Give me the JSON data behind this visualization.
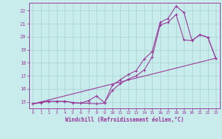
{
  "xlabel": "Windchill (Refroidissement éolien,°C)",
  "bg_color": "#c8ecec",
  "grid_color": "#aad4d4",
  "line_color": "#993399",
  "xlim": [
    -0.5,
    23.5
  ],
  "ylim": [
    14.5,
    22.6
  ],
  "xticks": [
    0,
    1,
    2,
    3,
    4,
    5,
    6,
    7,
    8,
    9,
    10,
    11,
    12,
    13,
    14,
    15,
    16,
    17,
    18,
    19,
    20,
    21,
    22,
    23
  ],
  "yticks": [
    15,
    16,
    17,
    18,
    19,
    20,
    21,
    22
  ],
  "series1_x": [
    0,
    1,
    2,
    3,
    4,
    5,
    6,
    7,
    8,
    9,
    10,
    11,
    12,
    13,
    14,
    15,
    16,
    17,
    18,
    19,
    20,
    21,
    22,
    23
  ],
  "series1_y": [
    14.85,
    14.95,
    15.05,
    15.05,
    15.05,
    14.95,
    14.9,
    14.9,
    14.85,
    14.9,
    16.3,
    16.7,
    17.1,
    17.4,
    18.3,
    18.85,
    21.1,
    21.4,
    22.35,
    21.85,
    19.7,
    20.15,
    19.95,
    18.35
  ],
  "series2_x": [
    0,
    1,
    2,
    3,
    4,
    5,
    6,
    7,
    8,
    9,
    10,
    11,
    12,
    13,
    14,
    15,
    16,
    17,
    18,
    19,
    20,
    21,
    22,
    23
  ],
  "series2_y": [
    14.85,
    14.95,
    15.05,
    15.05,
    15.05,
    14.95,
    14.9,
    15.1,
    15.45,
    14.95,
    15.9,
    16.4,
    16.75,
    17.0,
    17.45,
    18.45,
    20.9,
    21.1,
    21.7,
    19.75,
    19.7,
    20.15,
    19.95,
    18.35
  ],
  "series3_x": [
    0,
    23
  ],
  "series3_y": [
    14.85,
    18.35
  ]
}
